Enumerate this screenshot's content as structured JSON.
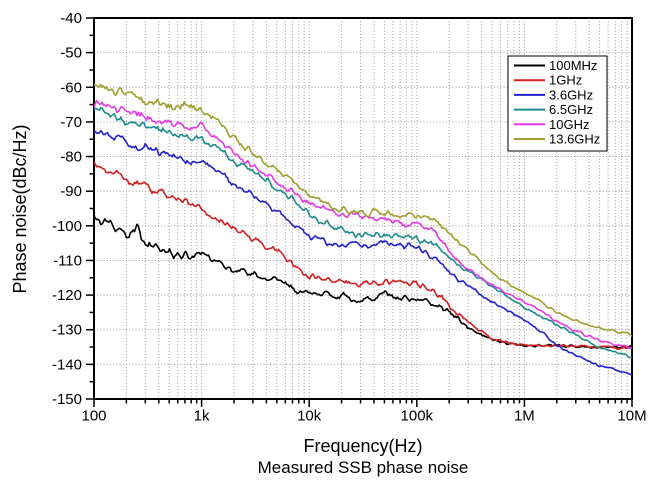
{
  "figure": {
    "background": "#ffffff",
    "caption": "Measured SSB phase noise"
  },
  "chart_data": {
    "type": "line",
    "title": "Measured SSB phase noise",
    "xlabel": "Frequency(Hz)",
    "ylabel": "Phase noise(dBc/Hz)",
    "x_scale": "log",
    "xlim": [
      100,
      10000000
    ],
    "ylim": [
      -150,
      -40
    ],
    "y_tick_step": 10,
    "grid": true,
    "grid_color": "#999999",
    "axis_color": "#000000",
    "legend_position": "top-right",
    "x_tick_labels": [
      "100",
      "1k",
      "10k",
      "100k",
      "1M",
      "10M"
    ],
    "y_tick_labels": [
      "-40",
      "-50",
      "-60",
      "-70",
      "-80",
      "-90",
      "-100",
      "-110",
      "-120",
      "-130",
      "-140",
      "-150"
    ],
    "x": [
      100,
      150,
      200,
      250,
      300,
      400,
      500,
      700,
      1000,
      1500,
      2000,
      3000,
      5000,
      7000,
      10000,
      15000,
      20000,
      30000,
      50000,
      70000,
      100000,
      150000,
      200000,
      300000,
      500000,
      700000,
      1000000,
      1500000,
      2000000,
      3000000,
      5000000,
      7000000,
      10000000
    ],
    "series": [
      {
        "name": "100MHz",
        "color": "#000000",
        "values": [
          -98,
          -100.5,
          -103,
          -99.5,
          -105.5,
          -106.5,
          -107.5,
          -109,
          -108,
          -111.5,
          -112.5,
          -114,
          -116,
          -118,
          -119.5,
          -120,
          -120.5,
          -121.5,
          -119.5,
          -120.5,
          -121.5,
          -122.5,
          -125,
          -129.5,
          -133,
          -134,
          -134.5,
          -134.6,
          -134.7,
          -134.8,
          -135,
          -135,
          -135
        ]
      },
      {
        "name": "1GHz",
        "color": "#d22020",
        "values": [
          -82.5,
          -85,
          -86.5,
          -87,
          -89,
          -90.5,
          -91.5,
          -93.5,
          -95,
          -98.5,
          -100.5,
          -104,
          -107.5,
          -111,
          -114.5,
          -115.5,
          -116,
          -116.5,
          -116,
          -116.5,
          -117,
          -119,
          -122.5,
          -128,
          -132.5,
          -133.8,
          -134.3,
          -134.5,
          -134.6,
          -134.8,
          -135,
          -135.2,
          -135.3
        ]
      },
      {
        "name": "3.6GHz",
        "color": "#2222cc",
        "values": [
          -72,
          -74.5,
          -75.5,
          -78.5,
          -77.5,
          -79,
          -80,
          -81,
          -81.5,
          -84,
          -88.5,
          -91,
          -95.5,
          -99,
          -103,
          -105,
          -105.5,
          -105.5,
          -104.5,
          -105.5,
          -106.5,
          -109.5,
          -113.5,
          -117.5,
          -122,
          -124.5,
          -127,
          -131,
          -134.5,
          -137.5,
          -140.5,
          -141.5,
          -142.5
        ]
      },
      {
        "name": "6.5GHz",
        "color": "#1f8c8c",
        "values": [
          -66.5,
          -68,
          -69.5,
          -70.5,
          -71,
          -72.5,
          -73,
          -74.5,
          -75,
          -78,
          -81.5,
          -84.5,
          -89,
          -92.5,
          -96.5,
          -99.5,
          -101,
          -103,
          -103,
          -102.5,
          -103.5,
          -105.5,
          -109.5,
          -113,
          -117.5,
          -120.5,
          -123.5,
          -126.5,
          -128.5,
          -131.5,
          -135,
          -136.5,
          -138
        ]
      },
      {
        "name": "10GHz",
        "color": "#e23ce2",
        "values": [
          -64.5,
          -66,
          -67,
          -68,
          -68.5,
          -69.5,
          -70,
          -71,
          -71.5,
          -75.5,
          -79.5,
          -82.5,
          -87,
          -90,
          -93.5,
          -95.5,
          -96.5,
          -97.5,
          -98,
          -99.5,
          -99.5,
          -102,
          -108,
          -112.5,
          -117,
          -119.5,
          -122,
          -125,
          -127.5,
          -130.5,
          -133,
          -134.3,
          -135.2
        ]
      },
      {
        "name": "13.6GHz",
        "color": "#a0a030",
        "values": [
          -58.5,
          -60.5,
          -61.5,
          -62.5,
          -63.5,
          -64.8,
          -65.5,
          -64.8,
          -66.6,
          -70.5,
          -75,
          -79,
          -83.5,
          -86.8,
          -91,
          -93.5,
          -95,
          -96,
          -96.5,
          -97,
          -97,
          -98.5,
          -102.5,
          -107,
          -113.5,
          -116.5,
          -119,
          -122.5,
          -125,
          -127.5,
          -129.5,
          -130.5,
          -131.5
        ]
      }
    ]
  }
}
